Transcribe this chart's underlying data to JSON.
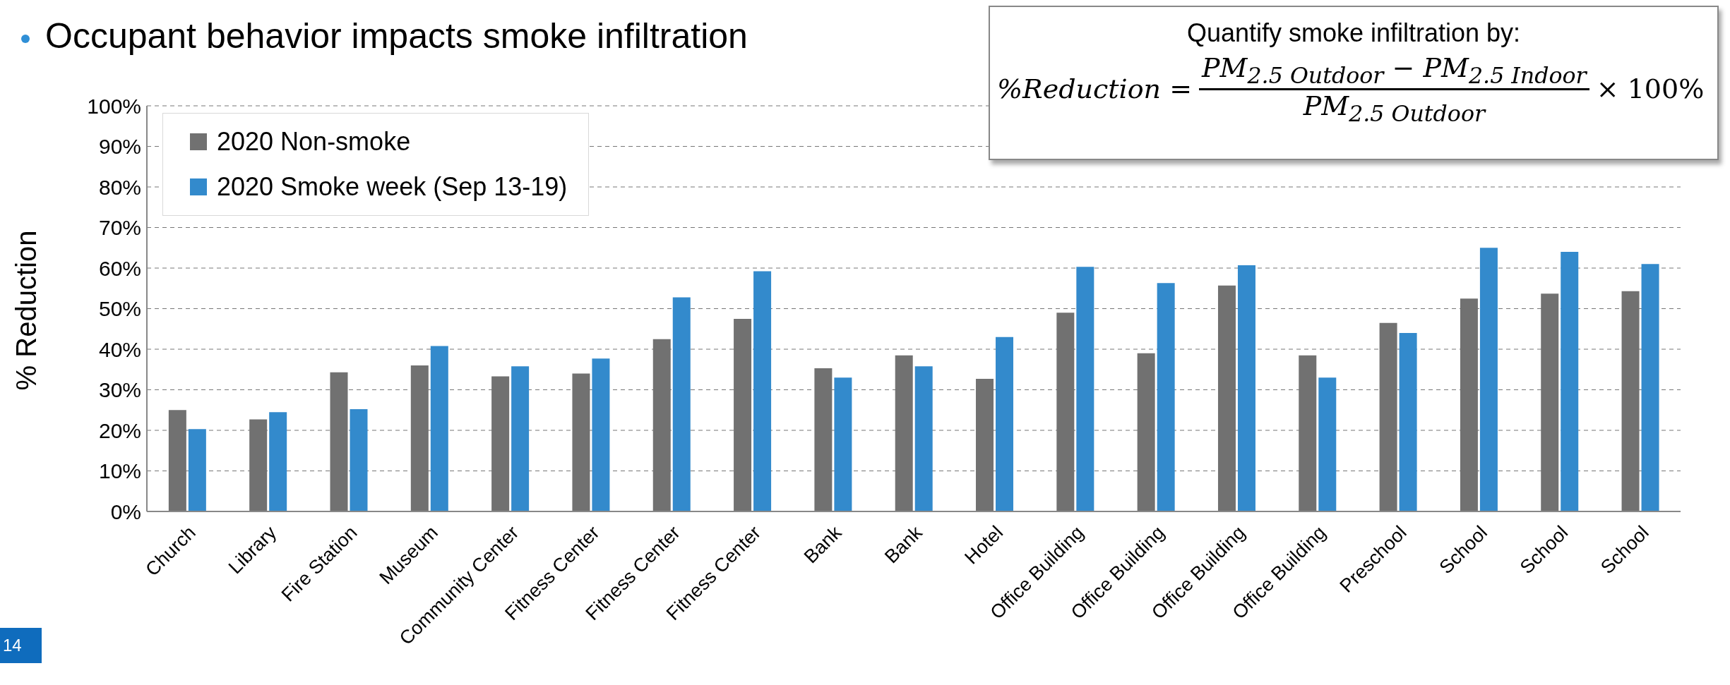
{
  "chart_data": {
    "type": "bar",
    "title": "Occupant behavior impacts smoke infiltration",
    "ylabel": "% Reduction",
    "categories": [
      "Church",
      "Library",
      "Fire Station",
      "Museum",
      "Community Center",
      "Fitness Center",
      "Fitness Center",
      "Fitness Center",
      "Bank",
      "Bank",
      "Hotel",
      "Office Building",
      "Office Building",
      "Office Building",
      "Office Building",
      "Preschool",
      "School",
      "School",
      "School"
    ],
    "series": [
      {
        "name": "2020 Non-smoke",
        "color": "#717171",
        "values": [
          25,
          22.7,
          34.3,
          36,
          33.3,
          34,
          42.5,
          47.5,
          35.3,
          38.5,
          32.7,
          49,
          39,
          55.7,
          38.5,
          46.5,
          52.5,
          53.7,
          54.3
        ]
      },
      {
        "name": "2020 Smoke week (Sep 13-19)",
        "color": "#338acc",
        "values": [
          20.3,
          24.5,
          25.2,
          40.8,
          35.8,
          37.7,
          52.8,
          59.2,
          33,
          35.8,
          43,
          60.3,
          56.3,
          60.7,
          33,
          44,
          65,
          64,
          61
        ]
      }
    ],
    "ylim": [
      0,
      100
    ],
    "yticks": [
      {
        "value": 0,
        "label": "0%"
      },
      {
        "value": 10,
        "label": "10%"
      },
      {
        "value": 20,
        "label": "20%"
      },
      {
        "value": 30,
        "label": "30%"
      },
      {
        "value": 40,
        "label": "40%"
      },
      {
        "value": 50,
        "label": "50%"
      },
      {
        "value": 60,
        "label": "60%"
      },
      {
        "value": 70,
        "label": "70%"
      },
      {
        "value": 80,
        "label": "80%"
      },
      {
        "value": 90,
        "label": "90%"
      },
      {
        "value": 100,
        "label": "100%"
      }
    ],
    "grid": "y",
    "legend": "top left",
    "annotations": [
      "Quantify smoke infiltration by:",
      "%Reduction =",
      "PM$_{2.5 Outdoor}$ − PM$_{2.5 Indoor}$",
      "PM$_{2.5 Outdoor}$",
      "× 100%",
      "14"
    ]
  }
}
